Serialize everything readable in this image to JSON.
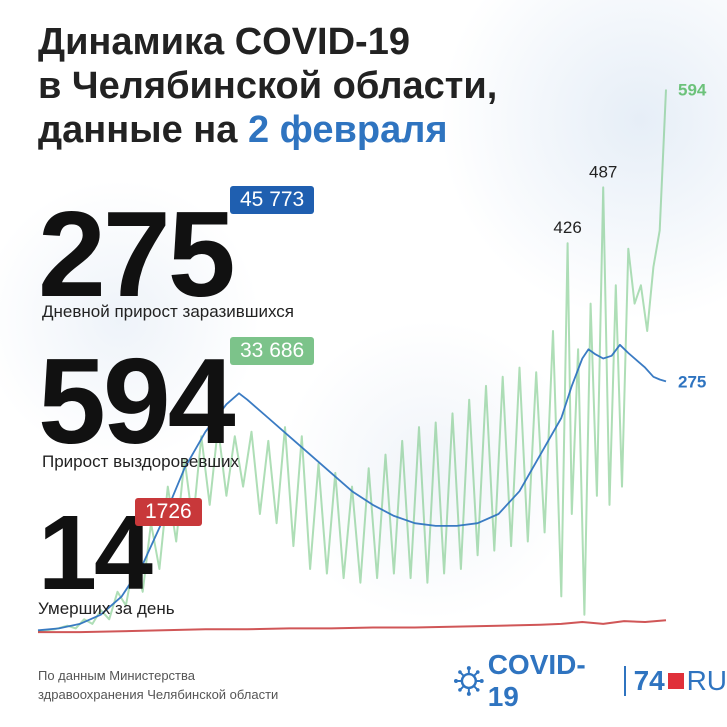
{
  "title": {
    "line1": "Динамика COVID-19",
    "line2": "в Челябинской области,",
    "line3_prefix": "данные на ",
    "line3_date": "2 февраля"
  },
  "stats": {
    "infected": {
      "value": "275",
      "total": "45 773",
      "label": "Дневной прирост заразившихся"
    },
    "recovered": {
      "value": "594",
      "total": "33 686",
      "label": "Прирост выздоровевших"
    },
    "deaths": {
      "value": "14",
      "total": "1726",
      "label": "Умерших за день"
    }
  },
  "footer": {
    "source_line1": "По данным Министерства",
    "source_line2": "здравоохранения Челябинской области",
    "brand_covid": "COVID-19",
    "brand_74": "74",
    "brand_ru": "RU"
  },
  "colors": {
    "blue": "#2f74c0",
    "green": "#6cc27a",
    "green_dark": "#5fb36c",
    "red": "#c8383a",
    "badge_blue": "#1f5fb0",
    "badge_green": "#7cc38a",
    "badge_red": "#c8383a",
    "text_dark": "#222222"
  },
  "chart_data": {
    "type": "line",
    "x_range": [
      0,
      300
    ],
    "y_range": [
      0,
      600
    ],
    "grid": false,
    "annotations": [
      {
        "text": "594",
        "series": "recovered"
      },
      {
        "text": "487",
        "series": "recovered"
      },
      {
        "text": "426",
        "series": "recovered"
      },
      {
        "text": "275",
        "series": "infected"
      }
    ],
    "series": [
      {
        "key": "infected",
        "color": "#2f74c0",
        "points": [
          [
            0,
            3
          ],
          [
            10,
            5
          ],
          [
            20,
            10
          ],
          [
            30,
            20
          ],
          [
            40,
            40
          ],
          [
            50,
            75
          ],
          [
            60,
            125
          ],
          [
            70,
            180
          ],
          [
            80,
            220
          ],
          [
            90,
            250
          ],
          [
            96,
            262
          ],
          [
            100,
            255
          ],
          [
            110,
            235
          ],
          [
            120,
            215
          ],
          [
            130,
            195
          ],
          [
            140,
            175
          ],
          [
            150,
            155
          ],
          [
            160,
            140
          ],
          [
            170,
            128
          ],
          [
            180,
            120
          ],
          [
            190,
            117
          ],
          [
            200,
            117
          ],
          [
            210,
            120
          ],
          [
            220,
            130
          ],
          [
            230,
            155
          ],
          [
            240,
            195
          ],
          [
            250,
            235
          ],
          [
            255,
            270
          ],
          [
            260,
            300
          ],
          [
            263,
            310
          ],
          [
            266,
            305
          ],
          [
            270,
            300
          ],
          [
            274,
            303
          ],
          [
            278,
            315
          ],
          [
            282,
            306
          ],
          [
            286,
            298
          ],
          [
            290,
            290
          ],
          [
            294,
            280
          ],
          [
            297,
            277
          ],
          [
            300,
            275
          ]
        ]
      },
      {
        "key": "recovered",
        "color": "#6cc27a",
        "points": [
          [
            0,
            2
          ],
          [
            8,
            4
          ],
          [
            14,
            8
          ],
          [
            18,
            5
          ],
          [
            22,
            15
          ],
          [
            26,
            10
          ],
          [
            30,
            25
          ],
          [
            34,
            15
          ],
          [
            38,
            45
          ],
          [
            42,
            30
          ],
          [
            46,
            80
          ],
          [
            50,
            45
          ],
          [
            54,
            120
          ],
          [
            58,
            70
          ],
          [
            62,
            160
          ],
          [
            66,
            100
          ],
          [
            70,
            190
          ],
          [
            74,
            120
          ],
          [
            78,
            215
          ],
          [
            82,
            140
          ],
          [
            86,
            225
          ],
          [
            90,
            150
          ],
          [
            94,
            215
          ],
          [
            98,
            160
          ],
          [
            102,
            220
          ],
          [
            106,
            130
          ],
          [
            110,
            210
          ],
          [
            114,
            120
          ],
          [
            118,
            225
          ],
          [
            122,
            95
          ],
          [
            126,
            215
          ],
          [
            130,
            70
          ],
          [
            134,
            185
          ],
          [
            138,
            65
          ],
          [
            142,
            175
          ],
          [
            146,
            60
          ],
          [
            150,
            160
          ],
          [
            154,
            55
          ],
          [
            158,
            180
          ],
          [
            162,
            60
          ],
          [
            166,
            195
          ],
          [
            170,
            65
          ],
          [
            174,
            210
          ],
          [
            178,
            60
          ],
          [
            182,
            225
          ],
          [
            186,
            55
          ],
          [
            190,
            230
          ],
          [
            194,
            65
          ],
          [
            198,
            240
          ],
          [
            202,
            70
          ],
          [
            206,
            255
          ],
          [
            210,
            85
          ],
          [
            214,
            270
          ],
          [
            218,
            90
          ],
          [
            222,
            280
          ],
          [
            226,
            95
          ],
          [
            230,
            290
          ],
          [
            234,
            100
          ],
          [
            238,
            285
          ],
          [
            242,
            110
          ],
          [
            246,
            330
          ],
          [
            250,
            40
          ],
          [
            253,
            426
          ],
          [
            255,
            130
          ],
          [
            258,
            310
          ],
          [
            261,
            20
          ],
          [
            264,
            360
          ],
          [
            267,
            150
          ],
          [
            270,
            487
          ],
          [
            273,
            140
          ],
          [
            276,
            380
          ],
          [
            279,
            160
          ],
          [
            282,
            420
          ],
          [
            285,
            360
          ],
          [
            288,
            380
          ],
          [
            291,
            330
          ],
          [
            294,
            400
          ],
          [
            297,
            440
          ],
          [
            300,
            594
          ]
        ]
      },
      {
        "key": "deaths",
        "color": "#c8383a",
        "points": [
          [
            0,
            1
          ],
          [
            20,
            1
          ],
          [
            40,
            2
          ],
          [
            60,
            3
          ],
          [
            80,
            4
          ],
          [
            100,
            4
          ],
          [
            120,
            5
          ],
          [
            140,
            5
          ],
          [
            160,
            6
          ],
          [
            180,
            6
          ],
          [
            200,
            7
          ],
          [
            220,
            8
          ],
          [
            240,
            9
          ],
          [
            250,
            10
          ],
          [
            260,
            12
          ],
          [
            270,
            10
          ],
          [
            280,
            13
          ],
          [
            290,
            12
          ],
          [
            300,
            14
          ]
        ]
      }
    ]
  }
}
